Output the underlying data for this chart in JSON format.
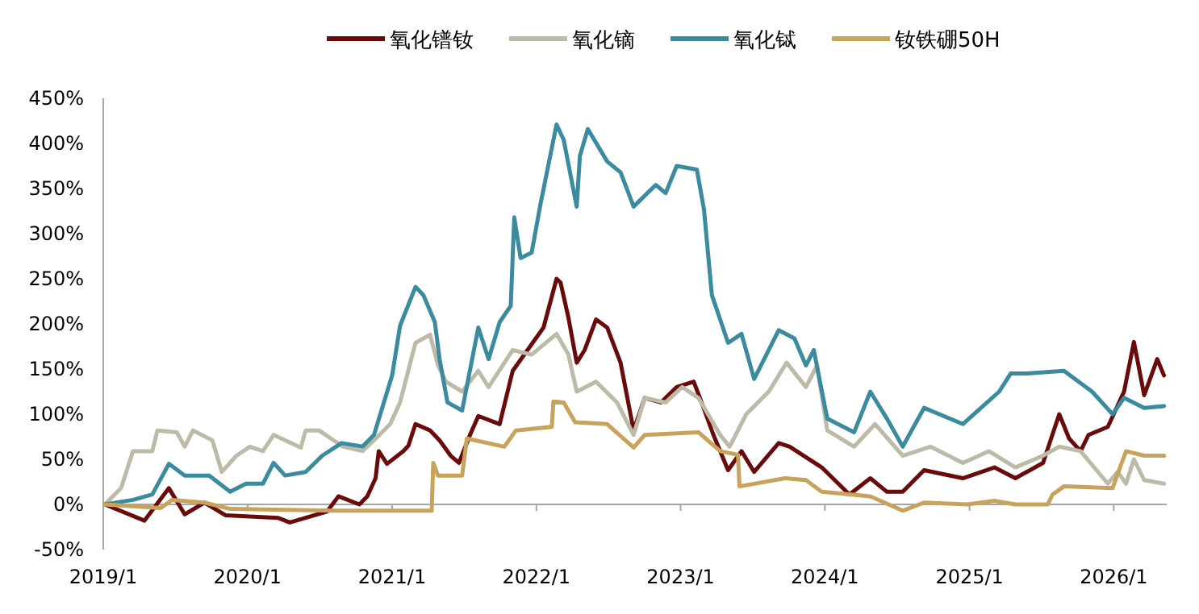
{
  "chart_data": {
    "type": "line",
    "legend": "top",
    "marker": "none",
    "line_style": "solid",
    "xlim": [
      "2019-01-01",
      "2026-05-15"
    ],
    "xticks": [
      {
        "value": "2019-01-01",
        "label": "2019/1"
      },
      {
        "value": "2020-01-01",
        "label": "2020/1"
      },
      {
        "value": "2021-01-01",
        "label": "2021/1"
      },
      {
        "value": "2022-01-01",
        "label": "2022/1"
      },
      {
        "value": "2023-01-01",
        "label": "2023/1"
      },
      {
        "value": "2024-01-01",
        "label": "2024/1"
      },
      {
        "value": "2025-01-01",
        "label": "2025/1"
      },
      {
        "value": "2026-01-01",
        "label": "2026/1"
      }
    ],
    "ylim": [
      -50,
      450
    ],
    "yticks": [
      {
        "value": -50,
        "label": "-50%"
      },
      {
        "value": 0,
        "label": "0%"
      },
      {
        "value": 50,
        "label": "50%"
      },
      {
        "value": 100,
        "label": "100%"
      },
      {
        "value": 150,
        "label": "150%"
      },
      {
        "value": 200,
        "label": "200%"
      },
      {
        "value": 250,
        "label": "250%"
      },
      {
        "value": 300,
        "label": "300%"
      },
      {
        "value": 350,
        "label": "350%"
      },
      {
        "value": 400,
        "label": "400%"
      },
      {
        "value": 450,
        "label": "450%"
      }
    ],
    "series": [
      {
        "name": "氧化镨钕",
        "color": "#6b0a0a",
        "x": [
          "2019-01-05",
          "2019-04-15",
          "2019-06-16",
          "2019-07-26",
          "2019-09-14",
          "2019-11-06",
          "2020-03-19",
          "2020-04-17",
          "2020-07-20",
          "2020-08-18",
          "2020-10-10",
          "2020-10-30",
          "2020-11-20",
          "2020-11-28",
          "2020-12-19",
          "2021-01-29",
          "2021-02-11",
          "2021-03-01",
          "2021-04-07",
          "2021-05-01",
          "2021-05-29",
          "2021-06-19",
          "2021-07-17",
          "2021-08-07",
          "2021-09-30",
          "2021-11-02",
          "2022-01-19",
          "2022-02-21",
          "2022-03-03",
          "2022-03-23",
          "2022-04-13",
          "2022-05-03",
          "2022-06-01",
          "2022-06-29",
          "2022-08-02",
          "2022-09-04",
          "2022-10-02",
          "2022-11-12",
          "2022-12-22",
          "2023-02-03",
          "2023-02-23",
          "2023-03-25",
          "2023-05-01",
          "2023-06-04",
          "2023-07-06",
          "2023-09-06",
          "2023-10-04",
          "2023-12-24",
          "2024-03-03",
          "2024-04-25",
          "2024-06-06",
          "2024-07-16",
          "2024-09-08",
          "2024-12-15",
          "2025-03-05",
          "2025-04-27",
          "2025-07-06",
          "2025-08-16",
          "2025-09-10",
          "2025-10-09",
          "2025-10-29",
          "2025-12-17",
          "2026-01-27",
          "2026-02-21",
          "2026-03-19",
          "2026-04-21",
          "2026-05-08"
        ],
        "values": [
          0,
          -18,
          18,
          -11,
          2,
          -12,
          -15,
          -20,
          -8,
          9,
          0,
          9,
          29,
          59,
          45,
          59,
          65,
          89,
          82,
          71,
          54,
          46,
          77,
          98,
          89,
          148,
          196,
          250,
          246,
          207,
          157,
          171,
          205,
          196,
          157,
          82,
          118,
          113,
          130,
          136,
          113,
          77,
          38,
          59,
          36,
          68,
          64,
          41,
          11,
          29,
          14,
          14,
          38,
          29,
          41,
          29,
          46,
          100,
          73,
          59,
          77,
          86,
          125,
          180,
          121,
          161,
          143
        ]
      },
      {
        "name": "氧化镝",
        "color": "#bdbaa8",
        "x": [
          "2019-01-05",
          "2019-02-15",
          "2019-03-17",
          "2019-05-05",
          "2019-05-18",
          "2019-07-06",
          "2019-07-26",
          "2019-08-16",
          "2019-10-04",
          "2019-10-28",
          "2019-12-04",
          "2020-01-07",
          "2020-02-09",
          "2020-03-07",
          "2020-05-15",
          "2020-05-27",
          "2020-06-30",
          "2020-08-06",
          "2020-08-30",
          "2020-10-18",
          "2020-11-16",
          "2020-12-27",
          "2021-01-21",
          "2021-03-01",
          "2021-04-07",
          "2021-04-27",
          "2021-05-17",
          "2021-06-27",
          "2021-08-07",
          "2021-09-02",
          "2021-11-02",
          "2021-12-20",
          "2022-02-21",
          "2022-03-23",
          "2022-04-13",
          "2022-06-01",
          "2022-07-24",
          "2022-09-04",
          "2022-10-02",
          "2022-11-24",
          "2023-01-05",
          "2023-02-15",
          "2023-04-11",
          "2023-05-05",
          "2023-06-16",
          "2023-08-12",
          "2023-09-26",
          "2023-11-14",
          "2023-12-12",
          "2024-01-07",
          "2024-03-15",
          "2024-05-07",
          "2024-07-16",
          "2024-09-24",
          "2024-12-15",
          "2025-02-19",
          "2025-04-27",
          "2025-07-06",
          "2025-08-16",
          "2025-10-09",
          "2025-12-17",
          "2026-01-11",
          "2026-02-01",
          "2026-02-21",
          "2026-03-19",
          "2026-05-08"
        ],
        "values": [
          0,
          18,
          59,
          59,
          82,
          80,
          64,
          82,
          71,
          36,
          54,
          64,
          59,
          77,
          63,
          82,
          82,
          71,
          64,
          59,
          71,
          89,
          113,
          179,
          188,
          154,
          136,
          125,
          148,
          130,
          171,
          166,
          189,
          166,
          125,
          136,
          113,
          77,
          118,
          113,
          130,
          118,
          77,
          64,
          100,
          125,
          157,
          130,
          154,
          82,
          64,
          89,
          54,
          64,
          46,
          59,
          41,
          54,
          64,
          59,
          23,
          36,
          23,
          50,
          27,
          23
        ]
      },
      {
        "name": "氧化铽",
        "color": "#3a8aa0",
        "x": [
          "2019-01-05",
          "2019-03-17",
          "2019-05-05",
          "2019-06-16",
          "2019-07-26",
          "2019-09-26",
          "2019-11-18",
          "2019-12-28",
          "2020-02-09",
          "2020-03-07",
          "2020-04-05",
          "2020-05-27",
          "2020-07-08",
          "2020-08-26",
          "2020-10-18",
          "2020-11-16",
          "2021-01-01",
          "2021-01-21",
          "2021-03-01",
          "2021-03-21",
          "2021-04-19",
          "2021-05-01",
          "2021-05-21",
          "2021-06-27",
          "2021-08-07",
          "2021-09-02",
          "2021-09-30",
          "2021-10-28",
          "2021-11-06",
          "2021-11-22",
          "2021-12-20",
          "2022-01-11",
          "2022-02-21",
          "2022-03-11",
          "2022-04-13",
          "2022-04-21",
          "2022-05-11",
          "2022-06-29",
          "2022-08-02",
          "2022-09-04",
          "2022-10-30",
          "2022-11-24",
          "2022-12-22",
          "2023-02-11",
          "2023-03-01",
          "2023-03-21",
          "2023-05-01",
          "2023-06-04",
          "2023-07-06",
          "2023-09-06",
          "2023-10-16",
          "2023-11-14",
          "2023-12-04",
          "2024-01-07",
          "2024-03-15",
          "2024-04-25",
          "2024-06-06",
          "2024-07-16",
          "2024-09-08",
          "2024-12-15",
          "2025-03-17",
          "2025-04-15",
          "2025-05-26",
          "2025-08-28",
          "2025-11-07",
          "2025-12-29",
          "2026-01-27",
          "2026-03-19",
          "2026-05-08"
        ],
        "values": [
          0,
          5,
          11,
          45,
          32,
          32,
          14,
          23,
          23,
          46,
          32,
          36,
          54,
          68,
          64,
          77,
          143,
          198,
          241,
          232,
          202,
          161,
          113,
          104,
          196,
          161,
          202,
          220,
          318,
          273,
          279,
          332,
          421,
          404,
          330,
          386,
          416,
          380,
          368,
          330,
          354,
          345,
          375,
          371,
          327,
          232,
          179,
          189,
          139,
          193,
          184,
          154,
          171,
          95,
          80,
          125,
          95,
          64,
          107,
          89,
          125,
          145,
          145,
          148,
          125,
          100,
          118,
          107,
          109
        ]
      },
      {
        "name": "钕铁硼50H",
        "color": "#c9a25c",
        "x": [
          "2019-01-05",
          "2019-05-26",
          "2019-06-24",
          "2019-09-14",
          "2019-11-18",
          "2020-08-06",
          "2021-04-11",
          "2021-04-15",
          "2021-04-27",
          "2021-06-27",
          "2021-07-09",
          "2021-10-12",
          "2021-11-10",
          "2022-02-09",
          "2022-02-13",
          "2022-03-11",
          "2022-04-09",
          "2022-06-29",
          "2022-09-04",
          "2022-10-02",
          "2023-02-15",
          "2023-04-11",
          "2023-05-26",
          "2023-05-30",
          "2023-09-22",
          "2023-11-14",
          "2023-12-24",
          "2024-04-25",
          "2024-07-16",
          "2024-09-08",
          "2024-12-27",
          "2025-03-05",
          "2025-04-27",
          "2025-07-18",
          "2025-07-30",
          "2025-08-28",
          "2025-12-29",
          "2026-01-07",
          "2026-02-01",
          "2026-03-19",
          "2026-05-08"
        ],
        "values": [
          0,
          -4,
          5,
          2,
          -5,
          -7,
          -7,
          46,
          32,
          32,
          73,
          64,
          82,
          86,
          114,
          113,
          91,
          89,
          63,
          77,
          80,
          59,
          55,
          20,
          29,
          27,
          14,
          9,
          -7,
          2,
          0,
          4,
          0,
          0,
          11,
          20,
          18,
          29,
          59,
          54,
          54
        ]
      }
    ]
  }
}
